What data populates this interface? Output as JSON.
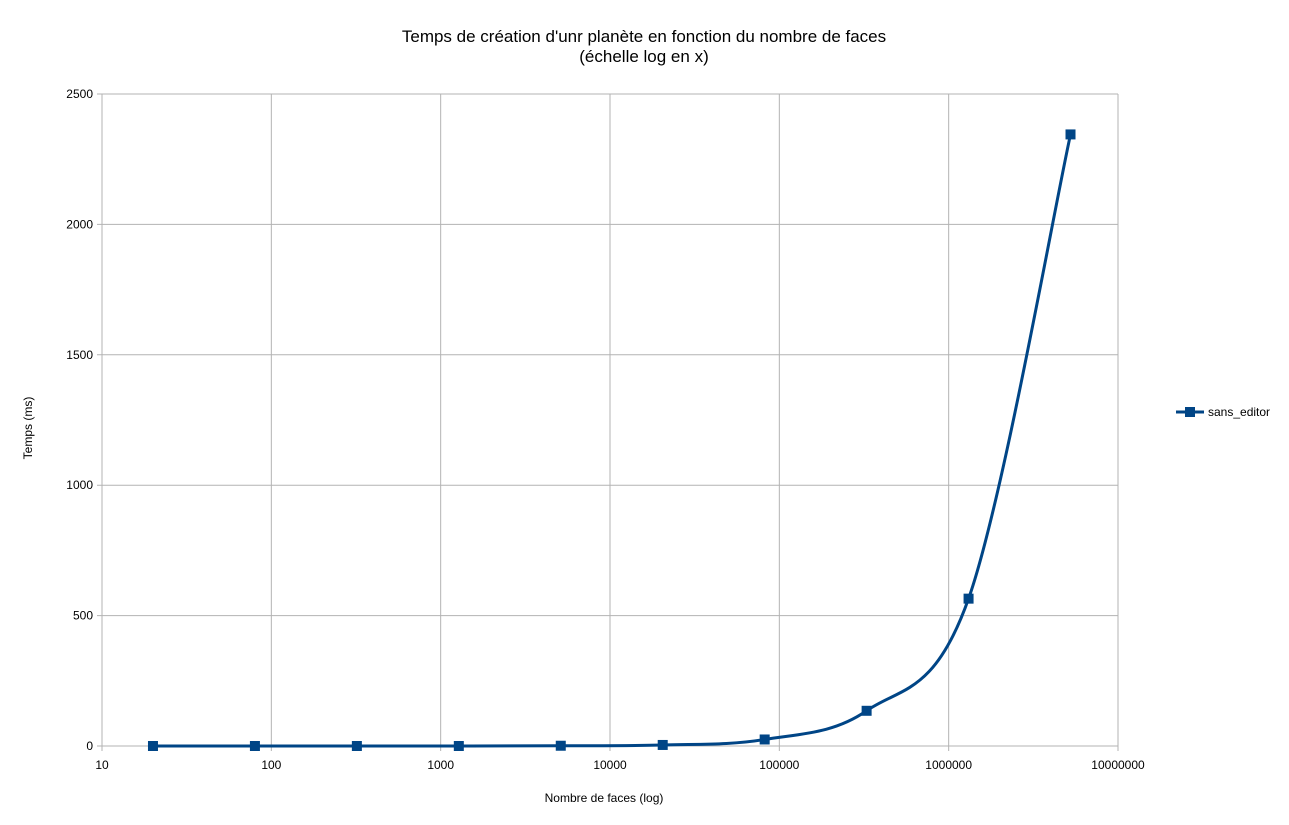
{
  "chart_data": {
    "type": "line",
    "title": "Temps de création d'unr planète en fonction du nombre de faces",
    "subtitle": "(échelle log en x)",
    "xlabel": "Nombre de faces (log)",
    "ylabel": "Temps (ms)",
    "x_scale": "log",
    "xlim": [
      10,
      10000000
    ],
    "ylim": [
      0,
      2500
    ],
    "x_ticks": [
      "10",
      "100",
      "1000",
      "10000",
      "100000",
      "1000000",
      "10000000"
    ],
    "y_ticks": [
      "0",
      "500",
      "1000",
      "1500",
      "2000",
      "2500"
    ],
    "grid": true,
    "legend_position": "right",
    "series": [
      {
        "name": "sans_editor",
        "color": "#004586",
        "marker": "square",
        "x": [
          20,
          80,
          320,
          1280,
          5120,
          20480,
          81920,
          327680,
          1310720,
          5242880
        ],
        "y": [
          0,
          0,
          0,
          0,
          1,
          4,
          25,
          135,
          565,
          2345
        ]
      }
    ]
  }
}
